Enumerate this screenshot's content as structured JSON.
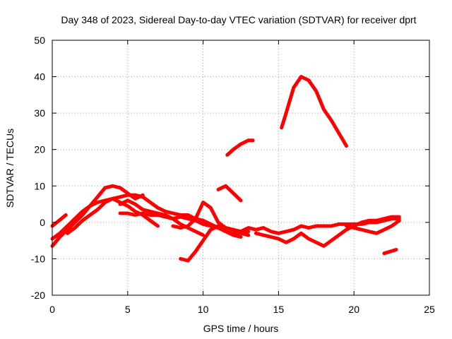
{
  "chart_data": {
    "type": "scatter",
    "title": "Day 348 of 2023, Sidereal Day-to-day VTEC variation (SDTVAR) for receiver dprt",
    "xlabel": "GPS time / hours",
    "ylabel": "SDTVAR / TECUs",
    "xlim": [
      0,
      25
    ],
    "ylim": [
      -20,
      50
    ],
    "grid": true,
    "xticks": [
      0,
      5,
      10,
      15,
      20,
      25
    ],
    "yticks": [
      -20,
      -10,
      0,
      10,
      20,
      30,
      40,
      50
    ],
    "xtick_labels": [
      "0",
      "5",
      "10",
      "15",
      "20",
      "25"
    ],
    "ytick_labels": [
      "-20",
      "-10",
      "0",
      "10",
      "20",
      "30",
      "40",
      "50"
    ],
    "color": "#ff0000",
    "series": [
      {
        "name": "s1",
        "x": [
          0.0,
          0.5,
          1.0,
          1.5,
          2.0,
          2.5,
          3.0,
          3.5,
          4.0,
          4.5,
          5.0,
          5.5,
          6.0
        ],
        "y": [
          -6.5,
          -4.0,
          -2.0,
          0.0,
          2.0,
          4.5,
          7.0,
          9.5,
          10.0,
          9.5,
          8.0,
          6.5,
          7.5
        ]
      },
      {
        "name": "s2",
        "x": [
          0.0,
          0.5,
          1.0,
          1.5,
          2.0,
          2.5,
          3.0,
          3.5,
          4.0,
          4.5,
          5.0,
          5.5,
          6.0,
          6.5,
          7.0,
          7.5,
          8.0,
          8.5,
          9.0,
          9.5,
          10.0,
          10.5,
          11.0
        ],
        "y": [
          -4.5,
          -3.0,
          -1.0,
          1.0,
          3.0,
          4.5,
          5.5,
          6.0,
          6.5,
          7.0,
          7.5,
          7.5,
          7.0,
          5.5,
          4.0,
          3.0,
          2.5,
          2.0,
          2.0,
          1.0,
          0.5,
          -0.5,
          -1.5
        ]
      },
      {
        "name": "s3",
        "x": [
          0.0,
          0.3,
          0.6,
          0.9
        ],
        "y": [
          -1.0,
          0.0,
          1.0,
          2.0
        ]
      },
      {
        "name": "s4",
        "x": [
          1.0,
          1.5,
          2.0,
          2.5,
          3.0,
          3.5,
          4.0,
          4.5,
          5.0,
          5.5,
          6.0,
          6.5,
          7.0
        ],
        "y": [
          -3.0,
          -1.5,
          0.5,
          2.0,
          3.5,
          5.5,
          6.5,
          5.5,
          4.5,
          3.0,
          2.0,
          0.5,
          -1.0
        ]
      },
      {
        "name": "s5",
        "x": [
          4.5,
          5.0,
          5.5,
          6.0,
          6.5,
          7.0,
          7.5,
          8.0,
          8.5,
          9.0,
          9.5,
          10.0,
          10.5,
          11.0,
          11.5,
          12.0,
          12.5,
          13.0
        ],
        "y": [
          2.5,
          2.5,
          2.0,
          2.5,
          2.0,
          2.0,
          1.5,
          1.0,
          1.5,
          1.0,
          0.5,
          -0.5,
          -1.0,
          -1.5,
          -2.5,
          -3.0,
          -3.0,
          -3.5
        ]
      },
      {
        "name": "s6",
        "x": [
          4.5,
          5.0,
          5.5,
          6.0,
          6.5,
          7.0,
          7.5,
          8.0,
          8.5,
          9.0,
          9.5,
          10.0
        ],
        "y": [
          5.0,
          6.0,
          5.0,
          3.5,
          3.0,
          2.5,
          2.0,
          1.0,
          -0.5,
          -1.5,
          -2.5,
          -3.5
        ]
      },
      {
        "name": "s7",
        "x": [
          8.5,
          9.0,
          9.5,
          10.0,
          10.5,
          11.0,
          11.5,
          12.0,
          12.5
        ],
        "y": [
          -10.0,
          -10.5,
          -8.0,
          -5.0,
          -2.0,
          -1.0,
          -2.5,
          -3.5,
          -4.0
        ]
      },
      {
        "name": "s8",
        "x": [
          8.0,
          8.5,
          9.0,
          9.5,
          10.0,
          10.5,
          11.0,
          11.5,
          12.0,
          12.5,
          13.0
        ],
        "y": [
          -1.0,
          -1.5,
          -1.0,
          1.0,
          5.5,
          4.0,
          0.0,
          -1.5,
          -2.0,
          -3.0,
          -2.5
        ]
      },
      {
        "name": "s9",
        "x": [
          11.0,
          11.5,
          12.0,
          12.5
        ],
        "y": [
          9.0,
          10.0,
          8.0,
          6.0
        ]
      },
      {
        "name": "s10",
        "x": [
          11.6,
          12.0,
          12.5,
          13.0,
          13.3
        ],
        "y": [
          18.5,
          20.0,
          21.5,
          22.5,
          22.5
        ]
      },
      {
        "name": "s11",
        "x": [
          15.2,
          15.5,
          16.0,
          16.5,
          17.0,
          17.5,
          18.0,
          18.5,
          19.0,
          19.5
        ],
        "y": [
          26.0,
          30.0,
          37.0,
          40.0,
          39.0,
          36.0,
          31.0,
          28.0,
          24.5,
          21.0
        ]
      },
      {
        "name": "s12",
        "x": [
          12.0,
          12.5,
          13.0,
          13.5,
          14.0,
          14.5,
          15.0,
          15.5,
          16.0,
          16.5,
          17.0,
          17.5,
          18.0,
          18.5,
          19.0,
          19.5,
          20.0,
          20.5,
          21.0,
          21.5,
          22.0,
          22.5,
          23.0
        ],
        "y": [
          -2.0,
          -2.5,
          -1.5,
          -2.0,
          -1.5,
          -2.5,
          -3.0,
          -2.5,
          -2.0,
          -1.0,
          -1.5,
          -1.0,
          -1.0,
          -1.0,
          -0.5,
          -0.5,
          -0.5,
          -0.5,
          0.0,
          0.0,
          0.5,
          1.0,
          1.0
        ]
      },
      {
        "name": "s13",
        "x": [
          13.5,
          14.0,
          14.5,
          15.0,
          15.5,
          16.0,
          16.5,
          17.0,
          17.5,
          18.0,
          18.5,
          19.0,
          19.5,
          20.0,
          20.5,
          21.0,
          21.5,
          22.0,
          22.5,
          23.0
        ],
        "y": [
          -3.0,
          -3.5,
          -4.0,
          -4.5,
          -5.5,
          -4.5,
          -3.0,
          -4.5,
          -5.5,
          -6.5,
          -5.0,
          -3.5,
          -2.0,
          -1.0,
          0.0,
          0.5,
          0.5,
          1.0,
          1.5,
          1.5
        ]
      },
      {
        "name": "s14",
        "x": [
          19.5,
          20.0,
          20.5,
          21.0,
          21.5,
          22.0,
          22.5,
          23.0
        ],
        "y": [
          -1.0,
          -1.5,
          -2.0,
          -2.5,
          -3.0,
          -2.0,
          -1.0,
          0.5
        ]
      },
      {
        "name": "s15",
        "x": [
          22.0,
          22.4,
          22.8
        ],
        "y": [
          -8.5,
          -8.0,
          -7.5
        ]
      }
    ]
  }
}
